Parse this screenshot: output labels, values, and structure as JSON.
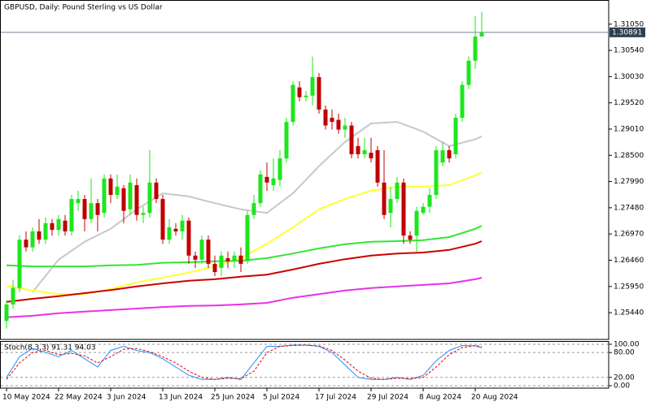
{
  "chart_data": {
    "type": "candlestick",
    "title": "GBPUSD, Daily:  Pound Sterling vs US Dollar",
    "categories": [
      "10 May 2024",
      null,
      null,
      null,
      null,
      null,
      null,
      null,
      "22 May 2024",
      null,
      null,
      null,
      null,
      null,
      null,
      null,
      "3 Jun 2024",
      null,
      null,
      null,
      null,
      null,
      null,
      null,
      "13 Jun 2024",
      null,
      null,
      null,
      null,
      null,
      null,
      null,
      "25 Jun 2024",
      null,
      null,
      null,
      null,
      null,
      null,
      null,
      "5 Jul 2024",
      null,
      null,
      null,
      null,
      null,
      null,
      null,
      "17 Jul 2024",
      null,
      null,
      null,
      null,
      null,
      null,
      null,
      "29 Jul 2024",
      null,
      null,
      null,
      null,
      null,
      null,
      null,
      "8 Aug 2024",
      null,
      null,
      null,
      null,
      null,
      null,
      null,
      "20 Aug 2024",
      null
    ],
    "ohlc": [
      [
        1.2528,
        1.2568,
        1.2513,
        1.256
      ],
      [
        1.256,
        1.2607,
        1.2552,
        1.2592
      ],
      [
        1.2592,
        1.2694,
        1.2584,
        1.2686
      ],
      [
        1.2686,
        1.2702,
        1.2663,
        1.2671
      ],
      [
        1.2671,
        1.271,
        1.2663,
        1.2702
      ],
      [
        1.2702,
        1.2726,
        1.2678,
        1.2686
      ],
      [
        1.2686,
        1.2729,
        1.2678,
        1.2718
      ],
      [
        1.2718,
        1.2726,
        1.2694,
        1.2705
      ],
      [
        1.2705,
        1.2734,
        1.2694,
        1.2726
      ],
      [
        1.2723,
        1.2734,
        1.2694,
        1.2702
      ],
      [
        1.2702,
        1.2773,
        1.2694,
        1.2765
      ],
      [
        1.2757,
        1.2781,
        1.2742,
        1.2765
      ],
      [
        1.2765,
        1.2773,
        1.2702,
        1.2726
      ],
      [
        1.2726,
        1.2805,
        1.2718,
        1.2757
      ],
      [
        1.2757,
        1.2765,
        1.2702,
        1.2734
      ],
      [
        1.2738,
        1.2813,
        1.2729,
        1.2805
      ],
      [
        1.2805,
        1.2813,
        1.2757,
        1.2773
      ],
      [
        1.2773,
        1.2813,
        1.2765,
        1.2789
      ],
      [
        1.2786,
        1.2792,
        1.2718,
        1.2742
      ],
      [
        1.2745,
        1.2813,
        1.2734,
        1.2797
      ],
      [
        1.2792,
        1.2805,
        1.2723,
        1.2734
      ],
      [
        1.2734,
        1.275,
        1.2718,
        1.2738
      ],
      [
        1.2738,
        1.286,
        1.2729,
        1.2797
      ],
      [
        1.2797,
        1.2805,
        1.2757,
        1.2765
      ],
      [
        1.2765,
        1.2773,
        1.2678,
        1.2686
      ],
      [
        1.2686,
        1.2726,
        1.2678,
        1.271
      ],
      [
        1.2707,
        1.2718,
        1.2694,
        1.2702
      ],
      [
        1.2702,
        1.2734,
        1.2686,
        1.2723
      ],
      [
        1.2723,
        1.2729,
        1.2639,
        1.2655
      ],
      [
        1.2655,
        1.2663,
        1.2631,
        1.2647
      ],
      [
        1.2647,
        1.2694,
        1.2639,
        1.2686
      ],
      [
        1.2686,
        1.2694,
        1.2631,
        1.2639
      ],
      [
        1.2639,
        1.2655,
        1.2615,
        1.2623
      ],
      [
        1.2631,
        1.2663,
        1.2615,
        1.2655
      ],
      [
        1.265,
        1.2663,
        1.2631,
        1.2644
      ],
      [
        1.2644,
        1.2663,
        1.2631,
        1.2655
      ],
      [
        1.2655,
        1.2671,
        1.2623,
        1.2639
      ],
      [
        1.2644,
        1.2742,
        1.2639,
        1.2734
      ],
      [
        1.2734,
        1.2773,
        1.2726,
        1.2757
      ],
      [
        1.2757,
        1.2821,
        1.275,
        1.2813
      ],
      [
        1.2808,
        1.2836,
        1.2781,
        1.2797
      ],
      [
        1.2792,
        1.2844,
        1.2781,
        1.2805
      ],
      [
        1.2802,
        1.286,
        1.2789,
        1.2844
      ],
      [
        1.2844,
        1.2923,
        1.2836,
        1.2915
      ],
      [
        1.2915,
        1.2994,
        1.2908,
        1.2987
      ],
      [
        1.2982,
        1.2994,
        1.2955,
        1.2963
      ],
      [
        1.2963,
        1.2975,
        1.2955,
        1.2966
      ],
      [
        1.2966,
        1.3042,
        1.2947,
        1.3002
      ],
      [
        1.3002,
        1.301,
        1.2931,
        1.2939
      ],
      [
        1.2939,
        1.2947,
        1.29,
        1.2908
      ],
      [
        1.2923,
        1.2939,
        1.29,
        1.2915
      ],
      [
        1.2919,
        1.2931,
        1.2892,
        1.29
      ],
      [
        1.29,
        1.2923,
        1.2884,
        1.2908
      ],
      [
        1.2908,
        1.2915,
        1.2844,
        1.2852
      ],
      [
        1.2868,
        1.2884,
        1.2844,
        1.2852
      ],
      [
        1.2852,
        1.2884,
        1.2844,
        1.286
      ],
      [
        1.2855,
        1.2884,
        1.2836,
        1.2844
      ],
      [
        1.286,
        1.2868,
        1.2789,
        1.2797
      ],
      [
        1.2797,
        1.286,
        1.2726,
        1.2734
      ],
      [
        1.2738,
        1.2789,
        1.271,
        1.2765
      ],
      [
        1.2765,
        1.2808,
        1.2757,
        1.2797
      ],
      [
        1.2797,
        1.2805,
        1.2678,
        1.2694
      ],
      [
        1.2694,
        1.2702,
        1.2678,
        1.2686
      ],
      [
        1.2694,
        1.275,
        1.2663,
        1.2742
      ],
      [
        1.2738,
        1.2757,
        1.2734,
        1.275
      ],
      [
        1.275,
        1.2786,
        1.2738,
        1.2773
      ],
      [
        1.2773,
        1.2868,
        1.2765,
        1.286
      ],
      [
        1.2836,
        1.2876,
        1.2829,
        1.286
      ],
      [
        1.286,
        1.2868,
        1.2836,
        1.2844
      ],
      [
        1.2852,
        1.2931,
        1.2844,
        1.2923
      ],
      [
        1.2923,
        1.2994,
        1.2915,
        1.2987
      ],
      [
        1.2987,
        1.3042,
        1.2979,
        1.3034
      ],
      [
        1.3034,
        1.3121,
        1.3018,
        1.3081
      ],
      [
        1.3081,
        1.3129,
        1.3081,
        1.30891
      ]
    ],
    "up_color": "#1ee61e",
    "down_color": "#c00000",
    "ylim": [
      1.2492,
      1.3152
    ],
    "yticks": [
      {
        "value": 1.3105,
        "label": "1.31050"
      },
      {
        "value": 1.3054,
        "label": "1.30540"
      },
      {
        "value": 1.3003,
        "label": "1.30030"
      },
      {
        "value": 1.2952,
        "label": "1.29520"
      },
      {
        "value": 1.2901,
        "label": "1.29010"
      },
      {
        "value": 1.285,
        "label": "1.28500"
      },
      {
        "value": 1.2799,
        "label": "1.27990"
      },
      {
        "value": 1.2748,
        "label": "1.27480"
      },
      {
        "value": 1.2697,
        "label": "1.26970"
      },
      {
        "value": 1.2646,
        "label": "1.26460"
      },
      {
        "value": 1.2595,
        "label": "1.25950"
      },
      {
        "value": 1.2544,
        "label": "1.25440"
      }
    ],
    "current_price": 1.30891,
    "ma_x": [
      0,
      4,
      8,
      12,
      16,
      20,
      24,
      28,
      32,
      36,
      40,
      44,
      48,
      52,
      56,
      60,
      64,
      68,
      72,
      73
    ],
    "moving_averages": [
      {
        "color": "#c8c8c8",
        "values": [
          null,
          1.2584,
          1.2647,
          1.2682,
          1.2707,
          1.2745,
          1.2776,
          1.277,
          1.2757,
          1.2745,
          1.2738,
          1.2776,
          1.2829,
          1.2876,
          1.2912,
          1.2915,
          1.2896,
          1.2868,
          1.2881,
          1.2887
        ]
      },
      {
        "color": "#ffff33",
        "values": [
          1.2596,
          1.2587,
          1.258,
          1.258,
          1.259,
          1.2603,
          1.2612,
          1.2622,
          1.2634,
          1.265,
          1.2678,
          1.271,
          1.2745,
          1.2765,
          1.2781,
          1.2789,
          1.2789,
          1.2792,
          1.2811,
          1.2817
        ]
      },
      {
        "color": "#33e633",
        "values": [
          1.2636,
          1.2634,
          1.2634,
          1.2634,
          1.2636,
          1.2637,
          1.2641,
          1.2642,
          1.2644,
          1.2645,
          1.265,
          1.2659,
          1.2669,
          1.2677,
          1.2682,
          1.2683,
          1.2685,
          1.2691,
          1.2707,
          1.2713
        ]
      },
      {
        "color": "#cc0000",
        "values": [
          1.2565,
          1.2571,
          1.2576,
          1.2582,
          1.2588,
          1.2595,
          1.2601,
          1.2606,
          1.2609,
          1.2614,
          1.2618,
          1.2628,
          1.2639,
          1.2648,
          1.2655,
          1.2659,
          1.2661,
          1.2666,
          1.2678,
          1.2683
        ]
      },
      {
        "color": "#e633e6",
        "values": [
          1.2535,
          1.2538,
          1.2543,
          1.2546,
          1.2549,
          1.2552,
          1.2555,
          1.2557,
          1.2558,
          1.256,
          1.2563,
          1.2573,
          1.258,
          1.2587,
          1.2592,
          1.2595,
          1.2598,
          1.2601,
          1.2609,
          1.2612
        ]
      }
    ],
    "stochastic": {
      "label": "Stoch(8,3,3) 91.31 94.03",
      "ylim": [
        -5.9,
        107.8
      ],
      "yticks": [
        {
          "value": 100,
          "label": "100.00"
        },
        {
          "value": 80,
          "label": "80.00"
        },
        {
          "value": 20,
          "label": "20.00"
        },
        {
          "value": 0,
          "label": "0.00"
        }
      ],
      "x": [
        0,
        2,
        4,
        6,
        8,
        10,
        12,
        14,
        16,
        18,
        20,
        22,
        24,
        26,
        28,
        30,
        32,
        34,
        36,
        38,
        40,
        42,
        44,
        46,
        48,
        50,
        52,
        54,
        56,
        58,
        60,
        62,
        64,
        66,
        68,
        70,
        72,
        73
      ],
      "lines": [
        {
          "color": "#1e90ff",
          "dashed": false,
          "values": [
            20,
            70,
            90,
            80,
            70,
            85,
            65,
            45,
            85,
            95,
            85,
            80,
            65,
            45,
            25,
            15,
            15,
            20,
            15,
            55,
            95,
            95,
            98,
            98,
            95,
            80,
            50,
            20,
            15,
            15,
            20,
            15,
            25,
            60,
            85,
            97,
            96,
            91.31
          ]
        },
        {
          "color": "#e60000",
          "dashed": true,
          "values": [
            15,
            55,
            80,
            85,
            75,
            78,
            72,
            55,
            70,
            88,
            90,
            82,
            70,
            55,
            35,
            20,
            15,
            18,
            17,
            35,
            80,
            95,
            97,
            98,
            96,
            85,
            62,
            35,
            18,
            15,
            18,
            17,
            20,
            45,
            75,
            92,
            97,
            94.03
          ]
        }
      ]
    }
  }
}
